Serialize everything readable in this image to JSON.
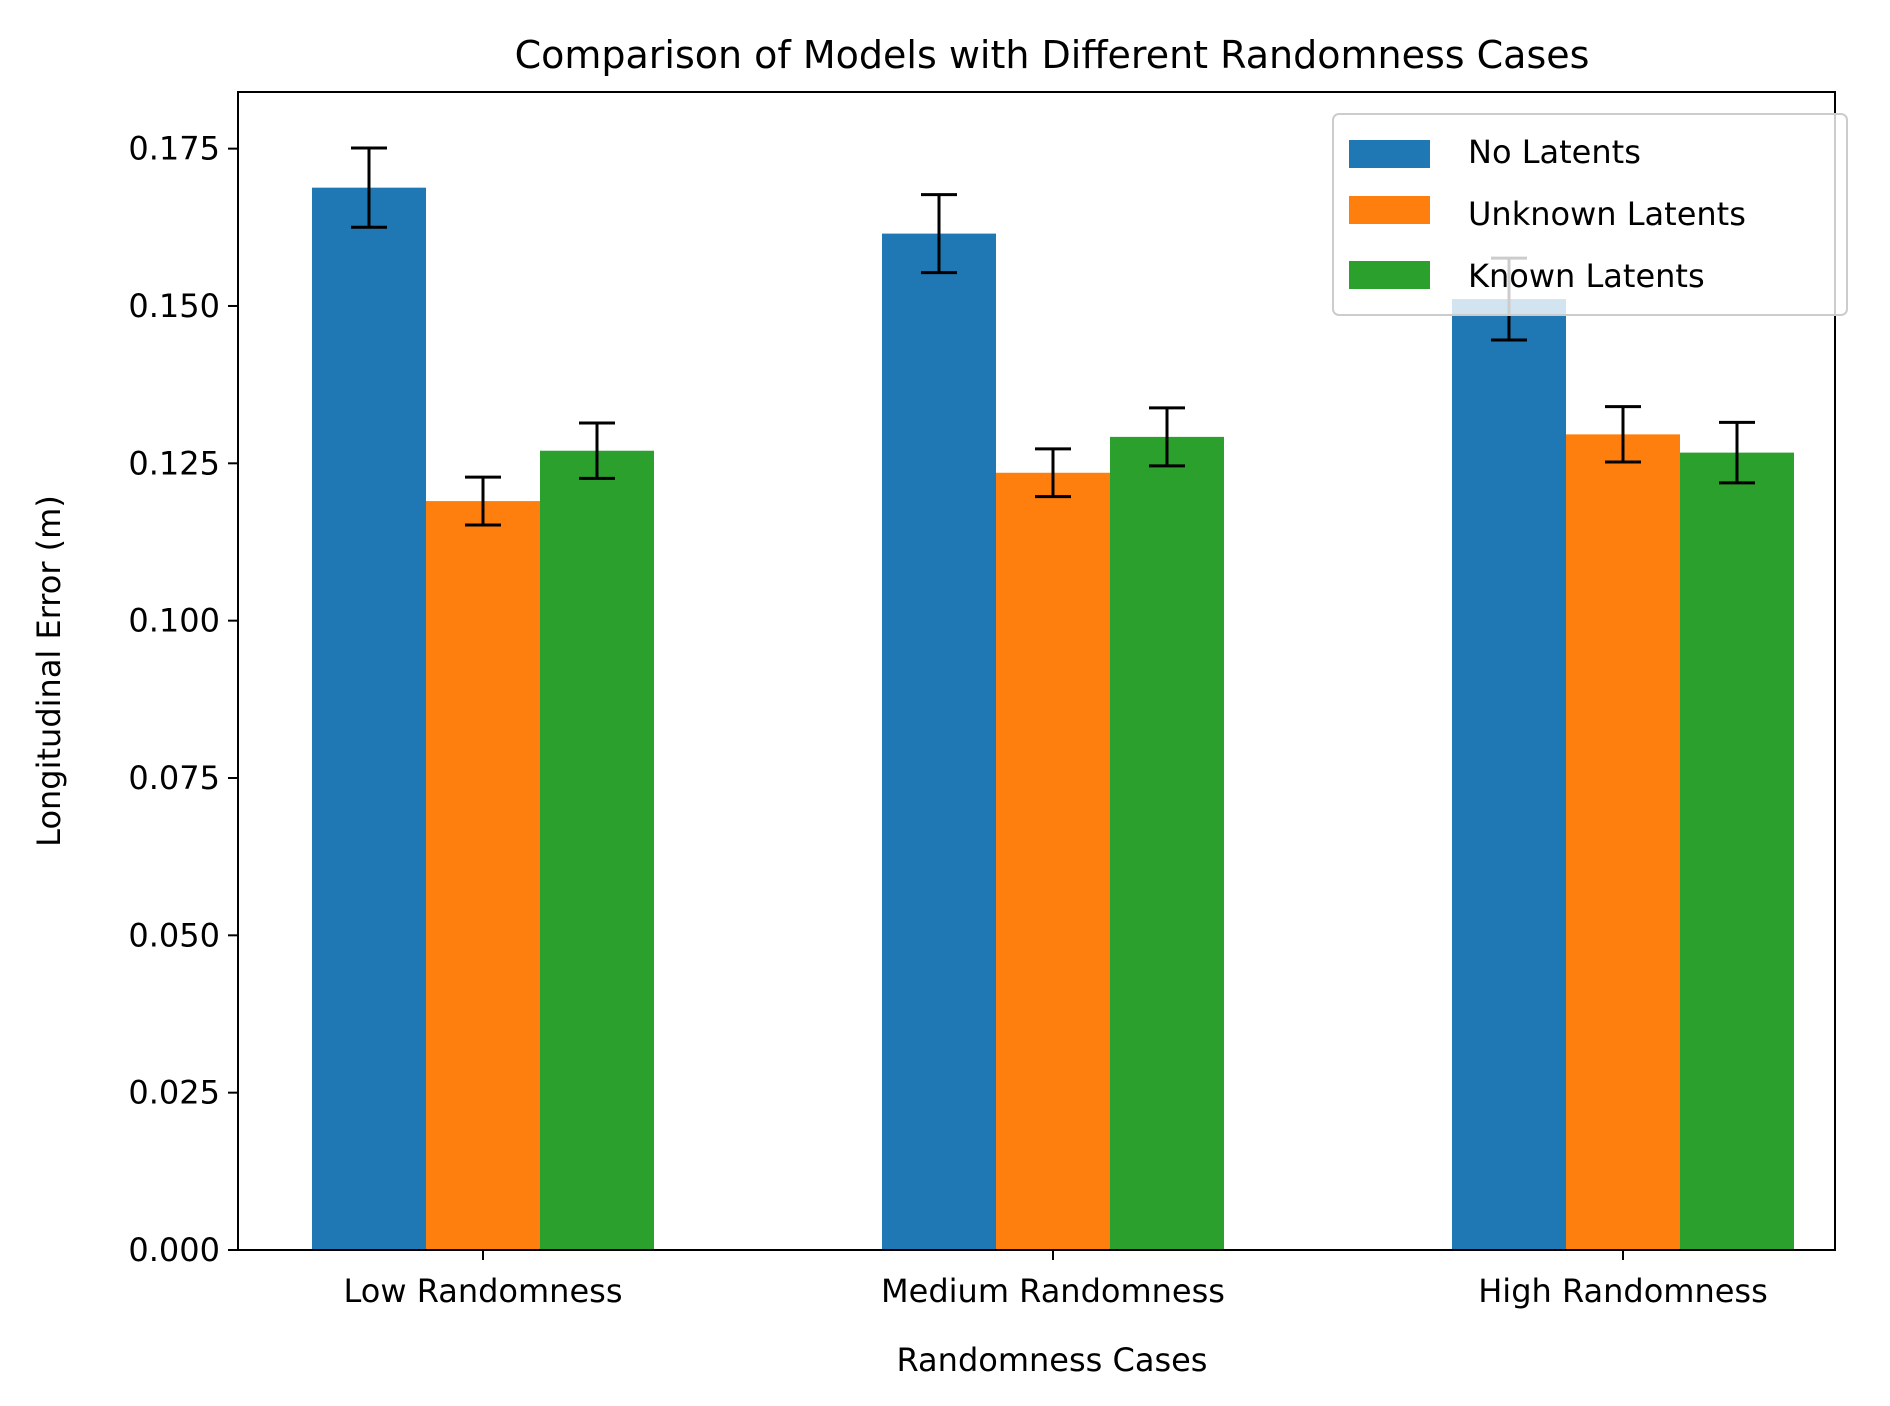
{
  "chart_data": {
    "type": "bar",
    "title": "Comparison of Models with Different Randomness Cases",
    "xlabel": "Randomness Cases",
    "ylabel": "Longitudinal Error (m)",
    "categories": [
      "Low Randomness",
      "Medium Randomness",
      "High Randomness"
    ],
    "ylim": [
      0,
      0.184
    ],
    "yticks": [
      "0.000",
      "0.025",
      "0.050",
      "0.075",
      "0.100",
      "0.125",
      "0.150",
      "0.175"
    ],
    "grid": false,
    "legend_position": "top-right",
    "series": [
      {
        "name": "No Latents",
        "color": "#1f77b4",
        "values": [
          0.1688,
          0.1615,
          0.1511
        ],
        "errors": [
          0.0063,
          0.0062,
          0.0065
        ]
      },
      {
        "name": "Unknown Latents",
        "color": "#ff7f0e",
        "values": [
          0.119,
          0.1235,
          0.1296
        ],
        "errors": [
          0.0038,
          0.0038,
          0.0044
        ]
      },
      {
        "name": "Known Latents",
        "color": "#2ca02c",
        "values": [
          0.127,
          0.1292,
          0.1267
        ],
        "errors": [
          0.0044,
          0.0046,
          0.0048
        ]
      }
    ]
  }
}
